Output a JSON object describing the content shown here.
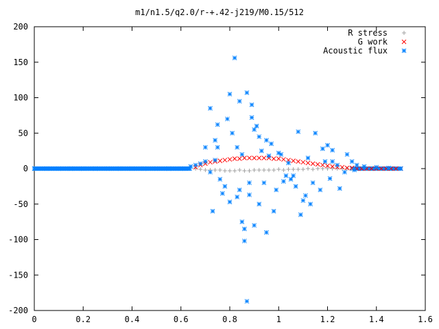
{
  "chart_data": {
    "type": "scatter",
    "title": "m1/n1.5/q2.0/r-+.42-j219/M0.15/512",
    "xlabel": "",
    "ylabel": "",
    "xlim": [
      0,
      1.6
    ],
    "ylim": [
      -200,
      200
    ],
    "x_ticks": [
      "0",
      "0.2",
      "0.4",
      "0.6",
      "0.8",
      "1",
      "1.2",
      "1.4",
      "1.6"
    ],
    "y_ticks": [
      "200",
      "150",
      "100",
      "50",
      "0",
      "-50",
      "-100",
      "-150",
      "-200"
    ],
    "grid": false,
    "legend_position": "top-right",
    "series": [
      {
        "name": "R stress",
        "marker": "+",
        "color": "#a0a0a0",
        "x": [
          0.66,
          0.68,
          0.7,
          0.72,
          0.74,
          0.76,
          0.78,
          0.8,
          0.82,
          0.84,
          0.86,
          0.88,
          0.9,
          0.92,
          0.94,
          0.96,
          0.98,
          1.0,
          1.02,
          1.04,
          1.06,
          1.08,
          1.1,
          1.12,
          1.14,
          1.16,
          1.18,
          1.2,
          1.22,
          1.24,
          1.26,
          1.28,
          1.3
        ],
        "y": [
          0,
          -1,
          -2,
          -2,
          -2,
          -2,
          -3,
          -3,
          -3,
          -2,
          -3,
          -3,
          -2,
          -2,
          -2,
          -2,
          -2,
          -1,
          -2,
          -1,
          -1,
          -1,
          -1,
          0,
          -1,
          0,
          0,
          0,
          0,
          0,
          0,
          0,
          0
        ]
      },
      {
        "name": "G work",
        "marker": "x",
        "color": "#ff0000",
        "x": [
          0.66,
          0.68,
          0.7,
          0.72,
          0.74,
          0.76,
          0.78,
          0.8,
          0.82,
          0.84,
          0.86,
          0.88,
          0.9,
          0.92,
          0.94,
          0.96,
          0.98,
          1.0,
          1.02,
          1.04,
          1.06,
          1.08,
          1.1,
          1.12,
          1.14,
          1.16,
          1.18,
          1.2,
          1.22,
          1.24,
          1.26,
          1.28,
          1.3,
          1.32,
          1.34,
          1.36,
          1.38,
          1.4,
          1.42,
          1.44,
          1.46,
          1.48,
          1.5
        ],
        "y": [
          2,
          5,
          7,
          9,
          10,
          11,
          12,
          13,
          14,
          14,
          15,
          15,
          15,
          15,
          15,
          15,
          14,
          14,
          13,
          12,
          11,
          10,
          9,
          8,
          7,
          6,
          5,
          4,
          3,
          2,
          2,
          1,
          1,
          0,
          0,
          0,
          0,
          0,
          0,
          0,
          0,
          0,
          0
        ]
      },
      {
        "name": "Acoustic flux",
        "marker": "*",
        "color": "#0080ff",
        "x": [
          0.0,
          0.05,
          0.1,
          0.15,
          0.2,
          0.25,
          0.3,
          0.35,
          0.4,
          0.45,
          0.5,
          0.55,
          0.6,
          0.64,
          0.66,
          0.68,
          0.7,
          0.72,
          0.74,
          0.73,
          0.75,
          0.77,
          0.78,
          0.8,
          0.81,
          0.82,
          0.83,
          0.84,
          0.85,
          0.86,
          0.87,
          0.88,
          0.89,
          0.9,
          0.91,
          0.92,
          0.93,
          0.95,
          0.97,
          0.99,
          1.01,
          1.03,
          1.05,
          1.08,
          1.1,
          1.12,
          1.15,
          1.18,
          1.2,
          1.22,
          1.25,
          1.28,
          1.3,
          1.32,
          1.35,
          1.4,
          1.45,
          1.5,
          0.76,
          0.79,
          0.88,
          0.92,
          0.98,
          1.06,
          1.14,
          1.24,
          0.72,
          0.83,
          0.86,
          0.9,
          1.0,
          1.09,
          1.17,
          1.27,
          0.74,
          0.8,
          0.94,
          1.02,
          1.11,
          1.21,
          1.31,
          0.75,
          0.85,
          0.96,
          1.04,
          1.13,
          1.22,
          0.7,
          0.84,
          0.87,
          0.89,
          0.95,
          1.07,
          1.19
        ],
        "y": [
          0,
          0,
          0,
          0,
          0,
          0,
          0,
          0,
          0,
          0,
          0,
          0,
          0,
          3,
          5,
          7,
          10,
          85,
          40,
          -60,
          30,
          -35,
          -25,
          105,
          50,
          156,
          -40,
          95,
          20,
          -102,
          107,
          -20,
          72,
          -80,
          60,
          -50,
          25,
          40,
          35,
          -30,
          20,
          -10,
          -15,
          52,
          -45,
          15,
          50,
          28,
          33,
          10,
          -28,
          20,
          10,
          5,
          3,
          2,
          1,
          0,
          -15,
          70,
          -37,
          45,
          -60,
          -10,
          -20,
          5,
          -5,
          30,
          -85,
          55,
          22,
          -65,
          -30,
          -5,
          12,
          -47,
          -20,
          -18,
          -38,
          -14,
          -2,
          62,
          -75,
          18,
          8,
          -50,
          26,
          30,
          -30,
          -187,
          90,
          -90,
          -25,
          10
        ]
      }
    ]
  }
}
